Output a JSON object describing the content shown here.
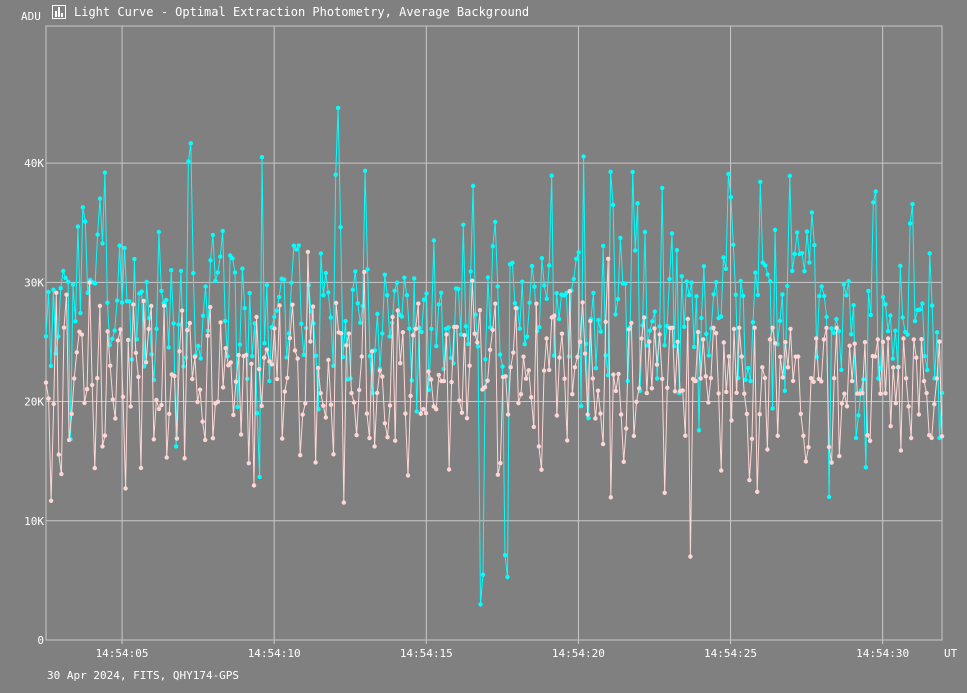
{
  "window": {
    "title": "Light Curve - Optimal Extraction Photometry, Average Background",
    "icon": "light-curve-chart-icon"
  },
  "footer_text": "30 Apr 2024, FITS, QHY174-GPS",
  "chart_data": {
    "type": "line",
    "title": "Light Curve - Optimal Extraction Photometry, Average Background",
    "ylabel": "ADU",
    "xlabel": "UT",
    "x_start": "14:54:02.50",
    "x_end": "14:54:31.95",
    "xlim_seconds_label_range": [
      "14:54:02.5",
      "14:54:31.95"
    ],
    "ylim": [
      0,
      51500
    ],
    "grid": true,
    "x_ticks": [
      "14:54:05",
      "14:54:10",
      "14:54:15",
      "14:54:20",
      "14:54:25",
      "14:54:30"
    ],
    "y_ticks": [
      "0",
      "10K",
      "20K",
      "30K",
      "40K"
    ],
    "y_tick_values": [
      0,
      10000,
      20000,
      30000,
      40000
    ],
    "sample_interval_s": 0.05,
    "colors": {
      "background": "#808080",
      "grid": "#c8c8c8",
      "series_a": "#00ffff",
      "series_b": "#ffd6d6"
    },
    "series": [
      {
        "color": "#00ffff",
        "values": [
          25472,
          29185,
          22993,
          29370,
          24029,
          25456,
          29508,
          30953,
          30364,
          30046,
          16845,
          29809,
          26734,
          34675,
          27416,
          36297,
          35096,
          29123,
          30193,
          29997,
          29906,
          34002,
          37021,
          33262,
          39202,
          28295,
          24736,
          25264,
          25952,
          28473,
          33082,
          28296,
          32880,
          28420,
          28401,
          23527,
          31949,
          25219,
          29063,
          29226,
          22950,
          30027,
          27000,
          23960,
          21813,
          26084,
          34225,
          29281,
          28256,
          28519,
          24530,
          31014,
          26563,
          16240,
          26456,
          30962,
          22947,
          23689,
          40139,
          41669,
          30773,
          23880,
          24669,
          23618,
          27190,
          29651,
          25943,
          31848,
          33968,
          30116,
          30834,
          32154,
          34317,
          26762,
          23807,
          32250,
          32001,
          30834,
          19553,
          24776,
          31151,
          27838,
          21906,
          29096,
          23808,
          26566,
          19025,
          13678,
          40499,
          24891,
          29768,
          21720,
          26225,
          27099,
          27617,
          28766,
          30307,
          30228,
          23707,
          25719,
          29969,
          33072,
          32764,
          33095,
          26524,
          23910,
          26149,
          29765,
          27562,
          26548,
          23834,
          19362,
          32426,
          28919,
          30778,
          29143,
          27049,
          22995,
          39028,
          44631,
          34624,
          23734,
          26751,
          21856,
          21946,
          29373,
          30919,
          28237,
          26616,
          28022,
          39355,
          31094,
          23809,
          20710,
          24289,
          27349,
          22771,
          25712,
          30640,
          28924,
          25463,
          26592,
          29289,
          29981,
          27296,
          27128,
          30388,
          28924,
          26108,
          21762,
          30329,
          19169,
          26181,
          25834,
          28542,
          29063,
          20981,
          26099,
          33521,
          24651,
          28153,
          29126,
          22733,
          26105,
          26216,
          23652,
          23209,
          29495,
          29448,
          25618,
          34831,
          26309,
          24829,
          30920,
          38078,
          27282,
          24618,
          2984,
          5475,
          23547,
          30416,
          26203,
          33030,
          35058,
          29651,
          23937,
          22928,
          7118,
          5282,
          31513,
          31636,
          28238,
          27832,
          26123,
          30052,
          24813,
          25437,
          28290,
          31359,
          29634,
          25891,
          26245,
          32020,
          29736,
          28616,
          31408,
          38941,
          23853,
          29086,
          26917,
          28972,
          28884,
          29106,
          23778,
          29312,
          30283,
          31965,
          32522,
          19616,
          40553,
          24847,
          18612,
          26911,
          29112,
          22796,
          26844,
          25859,
          33057,
          23883,
          22209,
          39270,
          36491,
          27312,
          28593,
          33719,
          29901,
          29888,
          21718,
          26224,
          39261,
          32681,
          36626,
          20905,
          26386,
          34223,
          24713,
          25939,
          26733,
          27549,
          21944,
          26301,
          37924,
          24719,
          26325,
          30283,
          34106,
          24652,
          32699,
          20709,
          30502,
          26269,
          30059,
          28932,
          29979,
          24581,
          28829,
          17596,
          27000,
          31346,
          25662,
          23851,
          26127,
          29000,
          30014,
          27003,
          27124,
          32079,
          31136,
          39090,
          37138,
          33145,
          28950,
          21963,
          30115,
          28866,
          21826,
          22802,
          21719,
          26658,
          30812,
          28935,
          38420,
          31648,
          31424,
          30659,
          30089,
          19426,
          34399,
          24802,
          26765,
          28985,
          20898,
          29693,
          38916,
          30951,
          32376,
          34188,
          32373,
          32452,
          30934,
          34252,
          31672,
          35869,
          33111,
          23713,
          28845,
          29659,
          28863,
          27089,
          11999,
          26134,
          25751,
          26919,
          25911,
          22651,
          29831,
          28910,
          30102,
          25651,
          28081,
          16944,
          18836,
          20944,
          21856,
          14489,
          29264,
          27262,
          36701,
          37615,
          21935,
          22785,
          28764,
          28161,
          25913,
          27215,
          23592,
          25944,
          22873,
          31369,
          27048,
          25832,
          25618,
          34928,
          36561,
          26751,
          27686,
          27713,
          28213,
          23812,
          22640,
          32427,
          28042,
          21947,
          25811,
          16941,
          20727
        ]
      },
      {
        "color": "#ffd6d6",
        "values": [
          21587,
          20245,
          11675,
          19796,
          29118,
          15547,
          13924,
          26207,
          28960,
          16787,
          18968,
          21934,
          24134,
          25860,
          25612,
          19880,
          21040,
          29983,
          21392,
          14421,
          21957,
          28023,
          16236,
          17145,
          25886,
          23011,
          20171,
          18576,
          25124,
          26050,
          20402,
          12716,
          25159,
          19587,
          28144,
          24081,
          22066,
          14437,
          28434,
          23296,
          26097,
          28011,
          16838,
          20133,
          19380,
          19700,
          28032,
          15305,
          18961,
          22280,
          22132,
          16896,
          24214,
          27625,
          15242,
          25989,
          26584,
          21888,
          23751,
          19960,
          20998,
          18315,
          16779,
          25522,
          27924,
          16929,
          19839,
          19977,
          26640,
          21185,
          24474,
          23039,
          23276,
          18880,
          21662,
          23898,
          17233,
          23809,
          23911,
          14832,
          23164,
          12967,
          27093,
          22722,
          19637,
          23680,
          24359,
          23366,
          23125,
          26140,
          21887,
          28066,
          16890,
          20834,
          21986,
          25326,
          28121,
          24290,
          23599,
          15500,
          18906,
          19844,
          32550,
          25040,
          27964,
          14898,
          22813,
          20698,
          19652,
          18662,
          23489,
          19735,
          15574,
          28264,
          25791,
          25729,
          11522,
          24722,
          25701,
          20709,
          19918,
          17183,
          20973,
          23783,
          30859,
          18993,
          16931,
          24213,
          16238,
          20716,
          22612,
          22097,
          18180,
          17011,
          19665,
          27089,
          16719,
          27637,
          23214,
          25807,
          18993,
          13800,
          20474,
          25553,
          26101,
          28216,
          18984,
          19366,
          19026,
          22513,
          21853,
          19593,
          19356,
          22239,
          21718,
          21713,
          25624,
          14297,
          21633,
          26253,
          26262,
          20087,
          19062,
          25562,
          18605,
          23004,
          30139,
          25689,
          24963,
          27659,
          21009,
          21208,
          21745,
          24339,
          26001,
          28207,
          13862,
          14834,
          22054,
          22116,
          18916,
          22880,
          24108,
          27827,
          19873,
          20616,
          23765,
          21917,
          22622,
          20359,
          17874,
          28210,
          16237,
          14288,
          22593,
          25294,
          22649,
          27054,
          27203,
          18831,
          23686,
          25689,
          21917,
          16744,
          29256,
          20617,
          22880,
          23733,
          25010,
          28316,
          24025,
          18914,
          26746,
          21932,
          18587,
          20911,
          18990,
          16428,
          26681,
          31970,
          11967,
          22264,
          20890,
          22312,
          18914,
          14945,
          17736,
          26064,
          26587,
          17123,
          19976,
          21111,
          25289,
          27049,
          20709,
          25028,
          21111,
          26138,
          23102,
          25633,
          21898,
          12344,
          21157,
          26181,
          26189,
          20859,
          25014,
          20873,
          20930,
          17134,
          26924,
          6995,
          21889,
          21713,
          25826,
          21946,
          25211,
          22120,
          19930,
          21970,
          26189,
          25733,
          20680,
          14213,
          24954,
          20809,
          23785,
          18421,
          26083,
          20734,
          26189,
          23768,
          20661,
          18968,
          13414,
          16873,
          26189,
          12430,
          18936,
          22876,
          21975,
          15982,
          25211,
          26189,
          24895,
          17127,
          23757,
          22014,
          24981,
          22872,
          26090,
          21729,
          23759,
          23768,
          18968,
          17127,
          14975,
          16172,
          21957,
          21656,
          25289,
          21889,
          21688,
          25211,
          26181,
          16192,
          14876,
          21958,
          26181,
          15421,
          19834,
          20656,
          19599,
          24681,
          21712,
          24851,
          20670,
          20666,
          20709,
          24981,
          17181,
          16712,
          23809,
          23779,
          25211,
          20661,
          24993,
          20690,
          25289,
          17935,
          22858,
          19864,
          22894,
          15893,
          25289,
          21954,
          19595,
          16942,
          25211,
          23677,
          18912,
          25226,
          21712,
          20709,
          17181,
          16949,
          19776,
          21937,
          25031,
          17083
        ]
      }
    ]
  }
}
